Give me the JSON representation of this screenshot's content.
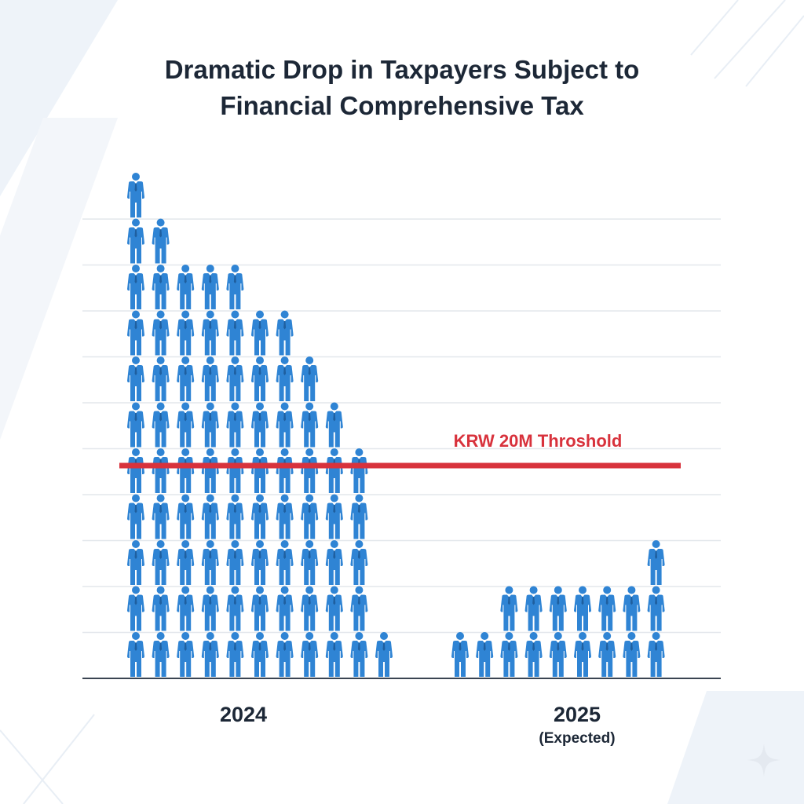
{
  "title": {
    "line1": "Dramatic Drop in Taxpayers Subject to",
    "line2": "Financial Comprehensive Tax"
  },
  "chart_data": {
    "type": "bar",
    "style": "pictogram",
    "title": "Dramatic Drop in Taxpayers Subject to Financial Comprehensive Tax",
    "categories": [
      "2024",
      "2025"
    ],
    "category_notes": [
      "",
      "(Expected)"
    ],
    "unit": "person icons (illustrative)",
    "series": [
      {
        "name": "2024",
        "column_heights": [
          11,
          10,
          9,
          9,
          9,
          8,
          8,
          7,
          6,
          5,
          1
        ]
      },
      {
        "name": "2025 (Expected)",
        "column_heights": [
          1,
          1,
          2,
          2,
          2,
          2,
          2,
          2,
          3
        ]
      }
    ],
    "threshold": {
      "label": "KRW 20M Throshold",
      "level_rows": 5
    },
    "grid": true,
    "ylim": [
      0,
      11
    ]
  },
  "colors": {
    "figure": "#2f84d4",
    "figure_dark": "#1f5f9f",
    "threshold": "#d8323c",
    "grid": "#e3e7ec",
    "axis": "#3a4452",
    "text": "#1c2736"
  }
}
